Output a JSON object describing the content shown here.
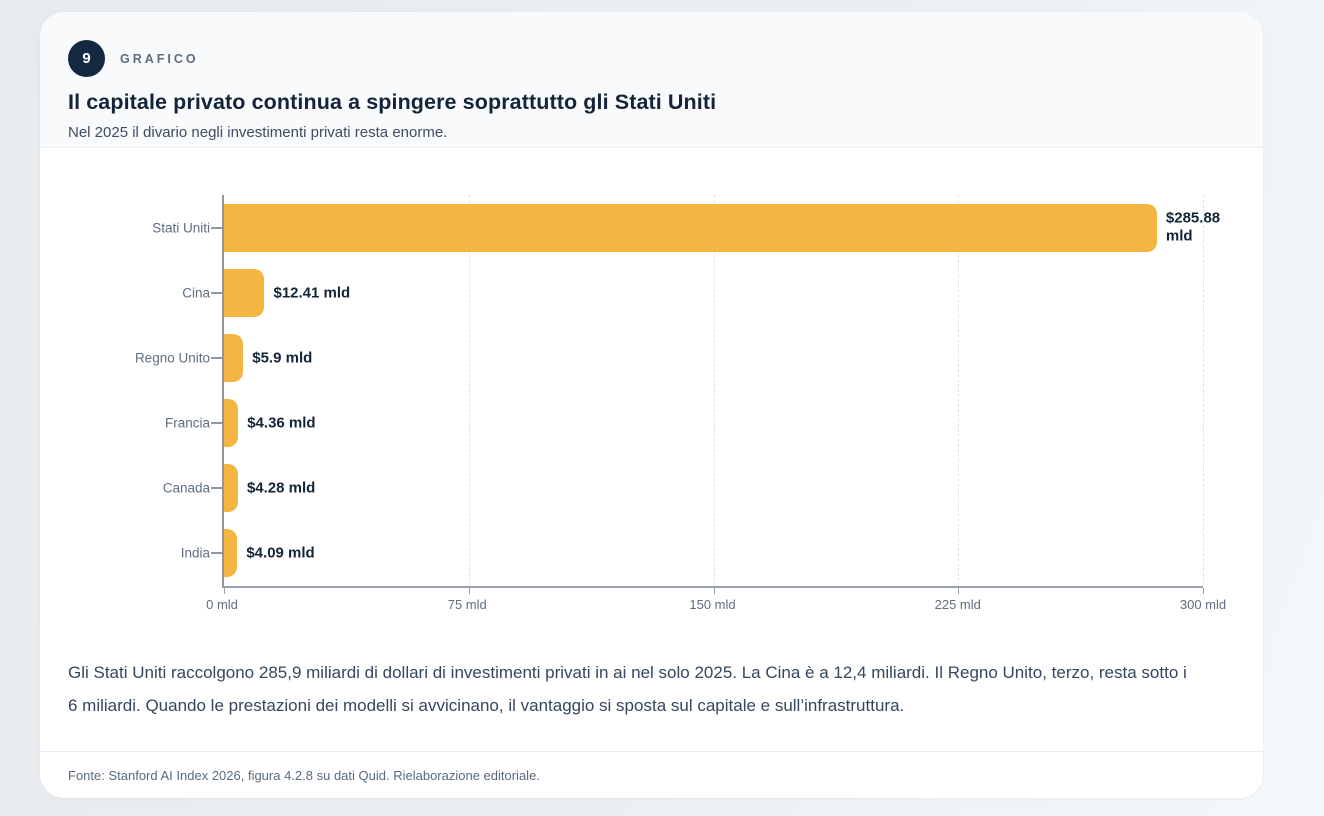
{
  "header": {
    "badge": "9",
    "kicker": "GRAFICO",
    "title": "Il capitale privato continua a spingere soprattutto gli Stati Uniti",
    "subtitle": "Nel 2025 il divario negli investimenti privati resta enorme."
  },
  "chart_data": {
    "type": "bar",
    "orientation": "horizontal",
    "categories": [
      "Stati Uniti",
      "Cina",
      "Regno Unito",
      "Francia",
      "Canada",
      "India"
    ],
    "values": [
      285.88,
      12.41,
      5.9,
      4.36,
      4.28,
      4.09
    ],
    "value_labels": [
      "$285.88 mld",
      "$12.41 mld",
      "$5.9 mld",
      "$4.36 mld",
      "$4.28 mld",
      "$4.09 mld"
    ],
    "unit": "mld",
    "xlim": [
      0,
      300
    ],
    "x_tick_values": [
      0,
      75,
      150,
      225,
      300
    ],
    "x_tick_labels": [
      "0 mld",
      "75 mld",
      "150 mld",
      "225 mld",
      "300 mld"
    ],
    "grid": "vertical-dashed",
    "legend": "none",
    "title": "Il capitale privato continua a spingere soprattutto gli Stati Uniti",
    "xlabel": "",
    "ylabel": ""
  },
  "commentary": "Gli Stati Uniti raccolgono 285,9 miliardi di dollari di investimenti privati in ai nel solo 2025. La Cina è a 12,4 miliardi. Il Regno Unito, terzo, resta sotto i 6 miliardi. Quando le prestazioni dei modelli si avvicinano, il vantaggio si sposta sul capitale e sull’infrastruttura.",
  "footer": {
    "source": "Fonte: Stanford AI Index 2026, figura 4.2.8 su dati Quid. Rielaborazione editoriale."
  },
  "colors": {
    "bar": "#F4B543",
    "badge_bg": "#152841",
    "title_text": "#15243A",
    "value_text": "#132438",
    "muted_text": "#5F6E80",
    "axis": "#8F969D",
    "gridline": "#DFE4EA"
  }
}
